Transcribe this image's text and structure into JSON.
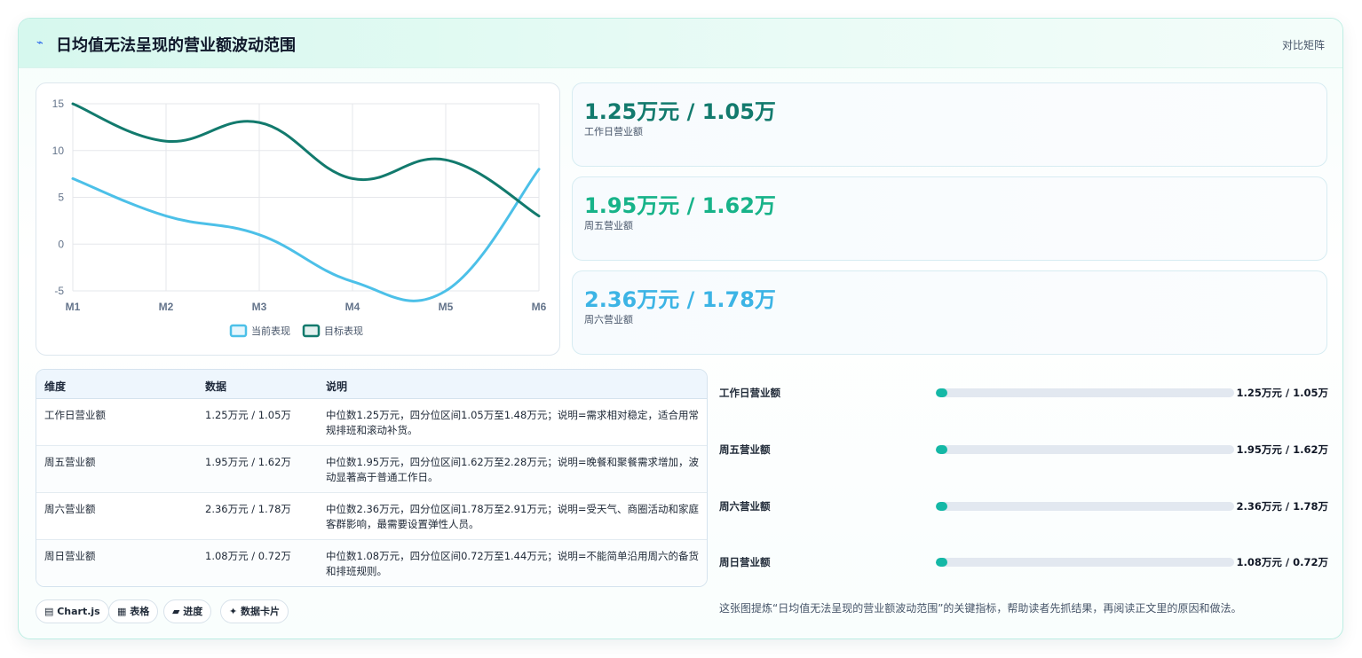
{
  "header": {
    "icon": "lightning-icon",
    "title": "日均值无法呈现的营业额波动范围",
    "link": "对比矩阵"
  },
  "chart_data": {
    "type": "line",
    "categories": [
      "M1",
      "M2",
      "M3",
      "M4",
      "M5",
      "M6"
    ],
    "ylim": [
      -5,
      15
    ],
    "yticks": [
      15,
      10,
      5,
      0,
      -5
    ],
    "grid": true,
    "legend": "bottom",
    "series": [
      {
        "name": "当前表现",
        "color": "#4cc0e8",
        "values": [
          7,
          3,
          1,
          -4,
          -5,
          8
        ]
      },
      {
        "name": "目标表现",
        "color": "#127a6d",
        "values": [
          15,
          11,
          13,
          7,
          9,
          3
        ]
      }
    ]
  },
  "stats": [
    {
      "value": "1.25万元 / 1.05万",
      "label": "工作日营业额",
      "color": "#127a6d"
    },
    {
      "value": "1.95万元 / 1.62万",
      "label": "周五营业额",
      "color": "#17b389"
    },
    {
      "value": "2.36万元 / 1.78万",
      "label": "周六营业额",
      "color": "#3cb4e5"
    }
  ],
  "table": {
    "headers": [
      "维度",
      "数据",
      "说明"
    ],
    "rows": [
      {
        "dim": "工作日营业额",
        "data": "1.25万元 / 1.05万",
        "desc": "中位数1.25万元，四分位区间1.05万至1.48万元；说明=需求相对稳定，适合用常规排班和滚动补货。"
      },
      {
        "dim": "周五营业额",
        "data": "1.95万元 / 1.62万",
        "desc": "中位数1.95万元，四分位区间1.62万至2.28万元；说明=晚餐和聚餐需求增加，波动显著高于普通工作日。"
      },
      {
        "dim": "周六营业额",
        "data": "2.36万元 / 1.78万",
        "desc": "中位数2.36万元，四分位区间1.78万至2.91万元；说明=受天气、商圈活动和家庭客群影响，最需要设置弹性人员。"
      },
      {
        "dim": "周日营业额",
        "data": "1.08万元 / 0.72万",
        "desc": "中位数1.08万元，四分位区间0.72万至1.44万元；说明=不能简单沿用周六的备货和排班规则。"
      }
    ]
  },
  "tags": [
    "▤ Chart.js",
    "▦ 表格",
    "▰ 进度",
    "✦ 数据卡片"
  ],
  "progress": [
    {
      "label": "工作日营业额",
      "value": "1.25万元 / 1.05万",
      "fraction": 0.04
    },
    {
      "label": "周五营业额",
      "value": "1.95万元 / 1.62万",
      "fraction": 0.04
    },
    {
      "label": "周六营业额",
      "value": "2.36万元 / 1.78万",
      "fraction": 0.04
    },
    {
      "label": "周日营业额",
      "value": "1.08万元 / 0.72万",
      "fraction": 0.04
    }
  ],
  "note": "这张图提炼“日均值无法呈现的营业额波动范围”的关键指标，帮助读者先抓结果，再阅读正文里的原因和做法。"
}
